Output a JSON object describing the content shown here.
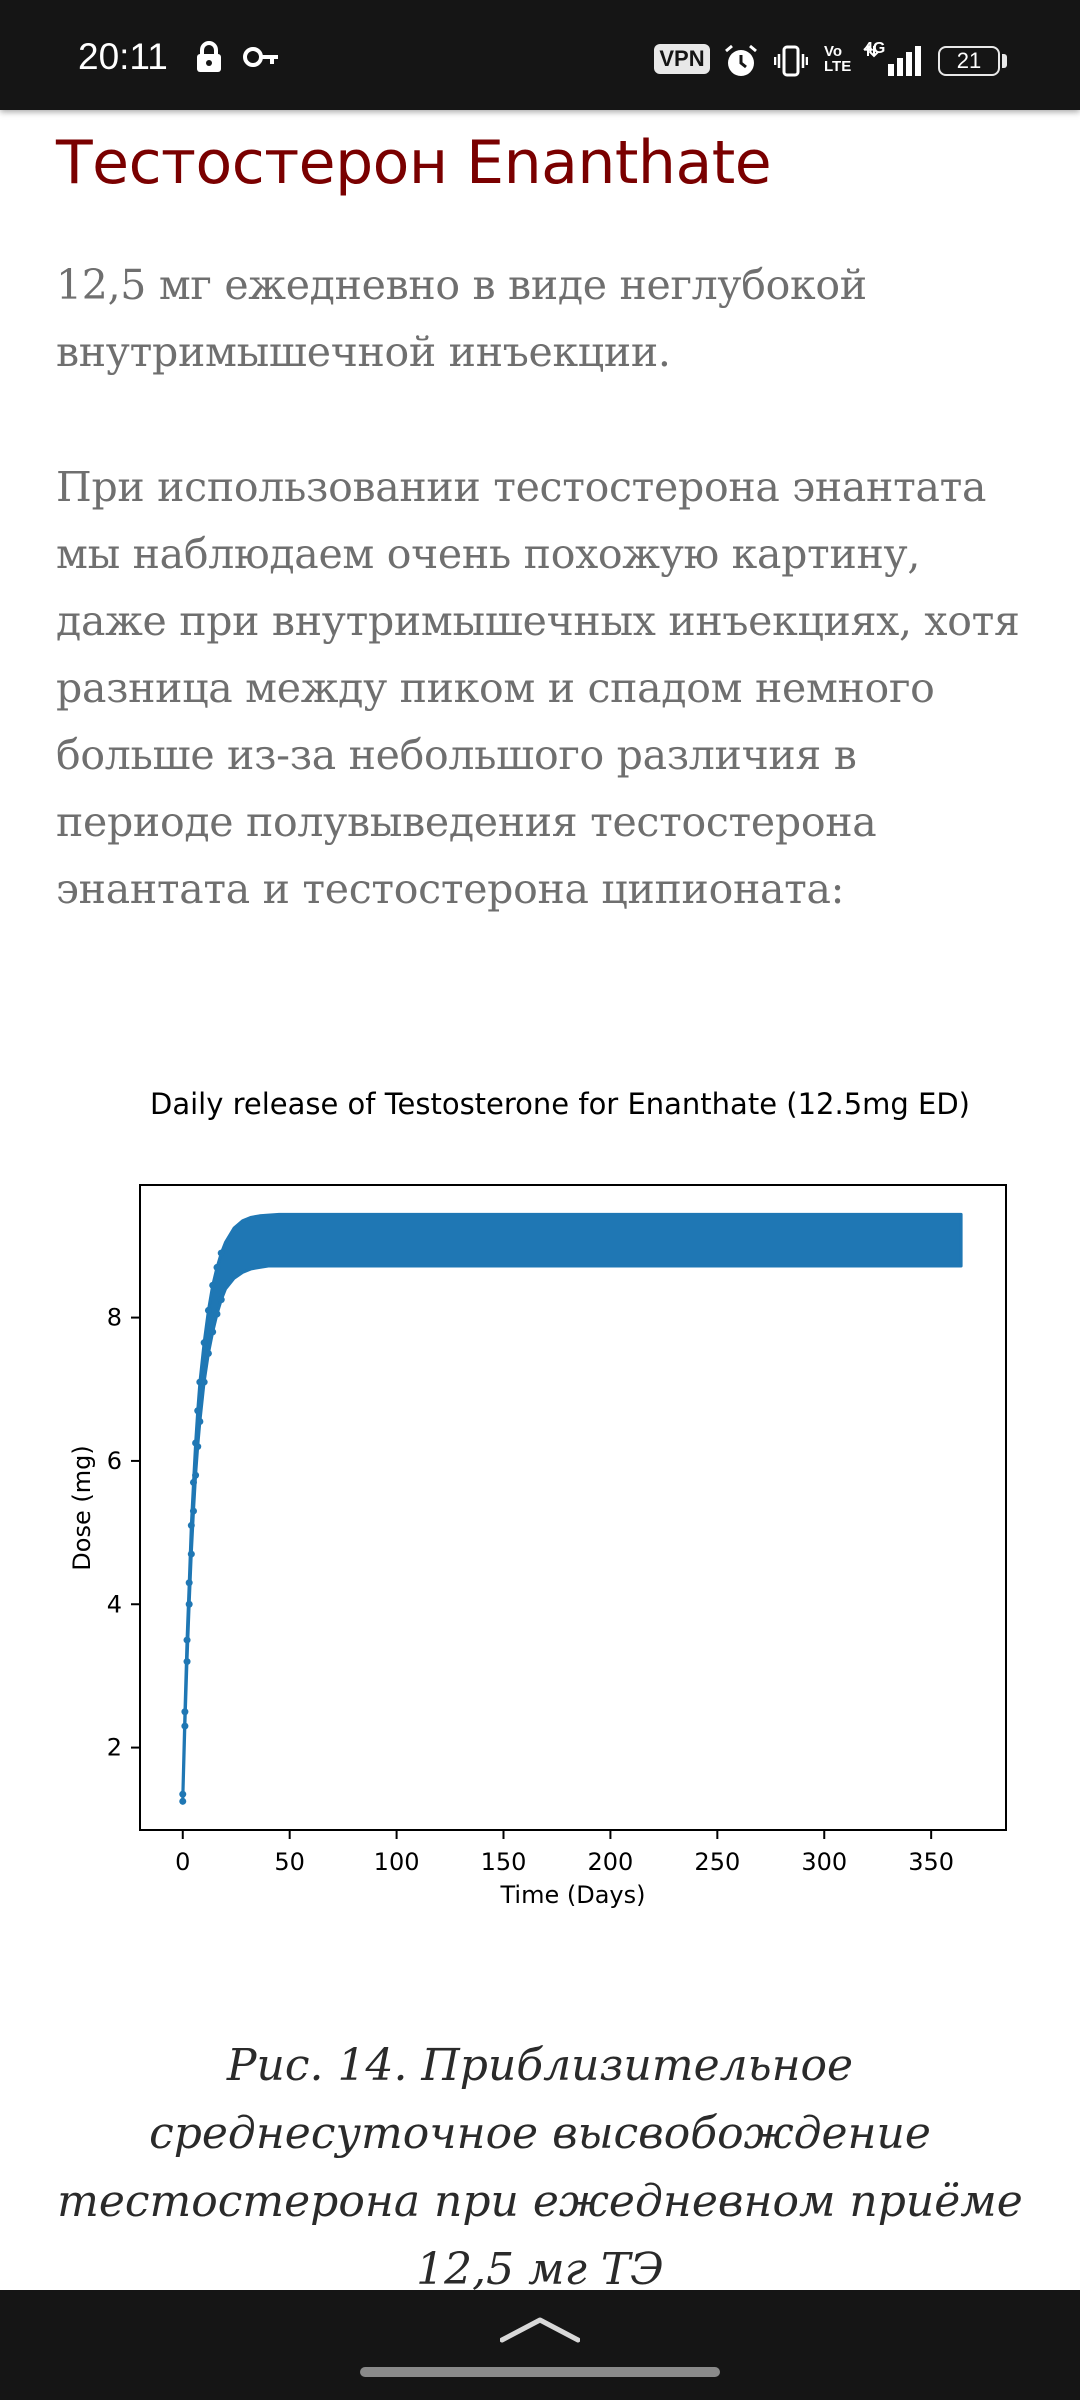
{
  "status_bar": {
    "time": "20:11",
    "vpn_label": "VPN",
    "volte_label_top": "Vo",
    "volte_label_bottom": "LTE",
    "network_label": "4G",
    "battery_level": "21",
    "icons": [
      "lock-icon",
      "key-icon",
      "vpn-badge",
      "alarm-icon",
      "vibrate-icon",
      "volte-icon",
      "signal-icon",
      "battery-icon"
    ]
  },
  "article": {
    "heading": "Тестостерон Enanthate",
    "paragraph_1": "12,5 мг ежедневно в виде неглубокой внутримышечной инъекции.",
    "paragraph_2": "При использовании тестостерона энантата мы наблюдаем очень похожую картину, даже при внутримышечных инъекциях, хотя разница между пиком и спадом немного больше из-за небольшого различия в периоде полувыведения тестостерона энантата и тестостерона ципионата:",
    "caption": "Рис. 14. Приблизительное среднесуточное высвобождение тестостерона при ежедневном приёме 12,5 мг ТЭ"
  },
  "chart_data": {
    "type": "line",
    "title": "Daily release of Testosterone for Enanthate (12.5mg ED)",
    "xlabel": "Time (Days)",
    "ylabel": "Dose (mg)",
    "xlim": [
      -20,
      385
    ],
    "ylim": [
      0.85,
      9.85
    ],
    "xticks": [
      "0",
      "50",
      "100",
      "150",
      "200",
      "250",
      "300",
      "350"
    ],
    "yticks": [
      "2",
      "4",
      "6",
      "8"
    ],
    "series": [
      {
        "color": "#1f77b4",
        "description_values": "daily oscillation between trough and peak",
        "peak": {
          "x": [
            0,
            1,
            2,
            3,
            4,
            5,
            6,
            7,
            8,
            10,
            12,
            14,
            16,
            18,
            20,
            24,
            28,
            32,
            36,
            40,
            45,
            50,
            100,
            150,
            200,
            250,
            300,
            364
          ],
          "y": [
            1.35,
            2.5,
            3.5,
            4.3,
            5.1,
            5.7,
            6.25,
            6.7,
            7.1,
            7.65,
            8.1,
            8.45,
            8.7,
            8.9,
            9.05,
            9.25,
            9.35,
            9.4,
            9.42,
            9.43,
            9.44,
            9.44,
            9.44,
            9.44,
            9.44,
            9.44,
            9.44,
            9.44
          ]
        },
        "trough": {
          "x": [
            0,
            1,
            2,
            3,
            4,
            5,
            6,
            7,
            8,
            10,
            12,
            14,
            16,
            18,
            20,
            24,
            28,
            32,
            36,
            40,
            45,
            50,
            100,
            150,
            200,
            250,
            300,
            364
          ],
          "y": [
            1.25,
            2.3,
            3.2,
            4.0,
            4.7,
            5.3,
            5.8,
            6.2,
            6.55,
            7.1,
            7.5,
            7.8,
            8.05,
            8.25,
            8.4,
            8.55,
            8.63,
            8.68,
            8.7,
            8.72,
            8.72,
            8.72,
            8.72,
            8.72,
            8.72,
            8.72,
            8.72,
            8.72
          ]
        }
      }
    ]
  },
  "nav_bar": {
    "icons": [
      "chevron-up-icon",
      "gesture-handle"
    ]
  }
}
